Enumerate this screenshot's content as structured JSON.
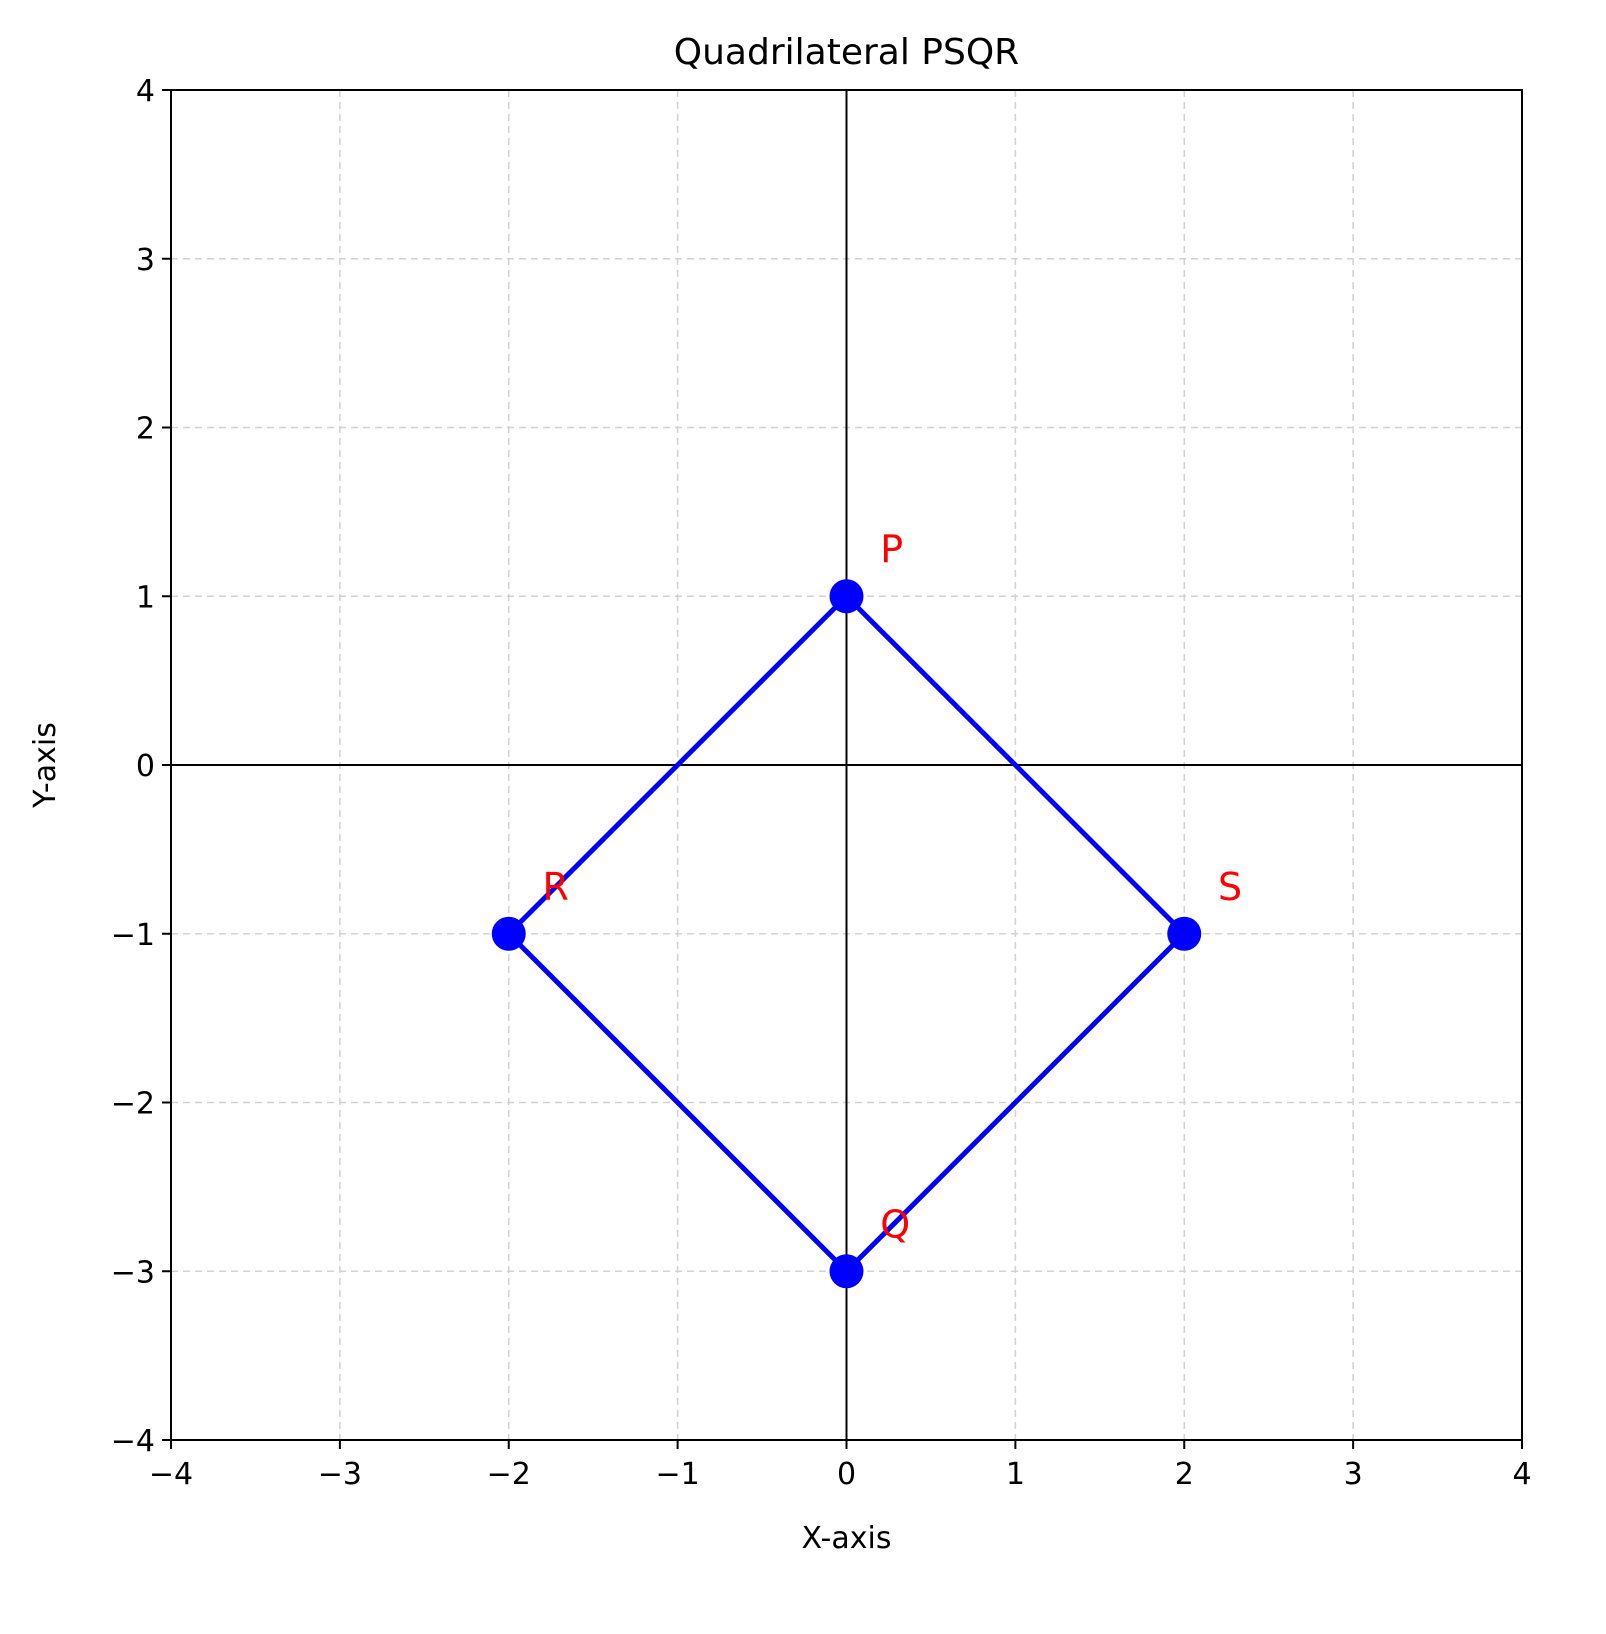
{
  "chart_data": {
    "type": "line",
    "title": "Quadrilateral PSQR",
    "xlabel": "X-axis",
    "ylabel": "Y-axis",
    "xlim": [
      -4,
      4
    ],
    "ylim": [
      -4,
      4
    ],
    "x_ticks": [
      -4,
      -3,
      -2,
      -1,
      0,
      1,
      2,
      3,
      4
    ],
    "y_ticks": [
      -4,
      -3,
      -2,
      -1,
      0,
      1,
      2,
      3,
      4
    ],
    "x_tick_labels": [
      "−4",
      "−3",
      "−2",
      "−1",
      "0",
      "1",
      "2",
      "3",
      "4"
    ],
    "y_tick_labels": [
      "−4",
      "−3",
      "−2",
      "−1",
      "0",
      "1",
      "2",
      "3",
      "4"
    ],
    "grid": true,
    "grid_style": "dashed",
    "reference_axes": {
      "x": 0,
      "y": 0
    },
    "series": [
      {
        "closed": true,
        "x": [
          0,
          2,
          0,
          -2
        ],
        "y": [
          1,
          -1,
          -3,
          -1
        ],
        "color": "#0000ff"
      }
    ],
    "points": [
      {
        "label": "P",
        "x": 0,
        "y": 1
      },
      {
        "label": "S",
        "x": 2,
        "y": -1
      },
      {
        "label": "Q",
        "x": 0,
        "y": -3
      },
      {
        "label": "R",
        "x": -2,
        "y": -1
      }
    ],
    "label_color": "#ff0000"
  }
}
